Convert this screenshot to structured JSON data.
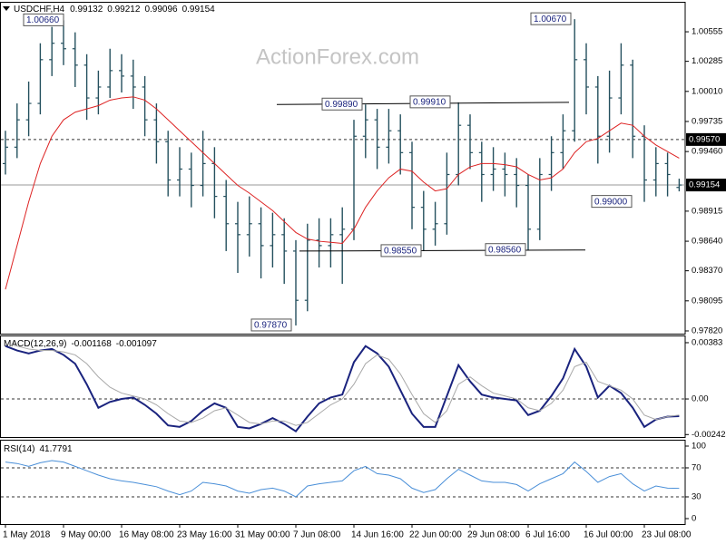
{
  "chart_data": [
    {
      "type": "ohlc",
      "title": "USDCHF,H4",
      "watermark": "ActionForex.com",
      "color": "#24505e",
      "categories": [
        "1 May 2018",
        null,
        null,
        null,
        null,
        "9 May 00:00",
        null,
        null,
        null,
        null,
        "16 May 08:00",
        null,
        null,
        null,
        null,
        "23 May 16:00",
        null,
        null,
        null,
        null,
        "31 May 00:00",
        null,
        null,
        null,
        null,
        "7 Jun 08:00",
        null,
        null,
        null,
        null,
        "14 Jun 16:00",
        null,
        null,
        null,
        null,
        "22 Jun 00:00",
        null,
        null,
        null,
        null,
        "29 Jun 08:00",
        null,
        null,
        null,
        null,
        "6 Jul 16:00",
        null,
        null,
        null,
        null,
        "16 Jul 00:00",
        null,
        null,
        null,
        null,
        "23 Jul 08:00",
        null,
        null,
        null
      ],
      "open": [
        0.9935,
        0.995,
        0.9975,
        0.999,
        1.003,
        1.0045,
        1.004,
        1.0025,
        0.9995,
        1.0005,
        1.002,
        1.0015,
        1.0005,
        0.9975,
        0.9955,
        0.992,
        0.993,
        0.9915,
        0.9935,
        0.9905,
        0.988,
        0.987,
        0.988,
        0.986,
        0.987,
        0.9855,
        0.981,
        0.9865,
        0.986,
        0.987,
        0.9875,
        0.996,
        0.9975,
        0.995,
        0.9965,
        0.9945,
        0.9895,
        0.9875,
        0.988,
        0.9925,
        0.997,
        0.9945,
        0.9925,
        0.993,
        0.9925,
        0.9915,
        0.9875,
        0.9925,
        0.9945,
        0.9965,
        1.003,
        1.0005,
        0.996,
        0.9995,
        1.0025,
        0.996,
        0.992,
        0.9935,
        0.99132
      ],
      "high": [
        0.9965,
        0.999,
        1.001,
        1.0045,
        1.006,
        1.0066,
        1.0055,
        1.0035,
        1.002,
        1.004,
        1.0035,
        1.003,
        1.0015,
        0.999,
        0.9965,
        0.995,
        0.9945,
        0.9965,
        0.995,
        0.992,
        0.99,
        0.9905,
        0.9895,
        0.989,
        0.9885,
        0.9865,
        0.988,
        0.9885,
        0.9885,
        0.9895,
        0.9975,
        0.9989,
        0.9985,
        0.9985,
        0.998,
        0.9955,
        0.991,
        0.99,
        0.9945,
        0.9991,
        0.998,
        0.9955,
        0.995,
        0.9945,
        0.994,
        0.9925,
        0.994,
        0.996,
        0.998,
        1.0067,
        1.0045,
        1.0015,
        1.002,
        1.0045,
        1.003,
        0.997,
        0.995,
        0.9945,
        0.99212
      ],
      "low": [
        0.9925,
        0.994,
        0.996,
        0.998,
        1.0015,
        1.0025,
        1.0005,
        0.9975,
        0.998,
        0.9995,
        1.0,
        0.9985,
        0.996,
        0.9935,
        0.9905,
        0.9905,
        0.9895,
        0.9905,
        0.9885,
        0.9855,
        0.9835,
        0.985,
        0.983,
        0.984,
        0.9825,
        0.9787,
        0.98,
        0.984,
        0.984,
        0.9825,
        0.9865,
        0.994,
        0.993,
        0.9935,
        0.9925,
        0.9875,
        0.9855,
        0.986,
        0.987,
        0.9915,
        0.993,
        0.99,
        0.991,
        0.9905,
        0.9895,
        0.9856,
        0.9865,
        0.991,
        0.993,
        0.9955,
        0.998,
        0.9935,
        0.9945,
        0.998,
        0.994,
        0.99,
        0.9905,
        0.9905,
        0.99096
      ],
      "close": [
        0.995,
        0.9975,
        0.999,
        1.003,
        1.0045,
        1.004,
        1.0025,
        0.9995,
        1.0005,
        1.002,
        1.0015,
        1.0005,
        0.9975,
        0.9955,
        0.992,
        0.993,
        0.9915,
        0.9935,
        0.9905,
        0.988,
        0.987,
        0.988,
        0.986,
        0.987,
        0.9855,
        0.981,
        0.9865,
        0.986,
        0.987,
        0.9875,
        0.996,
        0.9975,
        0.995,
        0.9965,
        0.9945,
        0.9895,
        0.9875,
        0.988,
        0.9925,
        0.997,
        0.9945,
        0.9925,
        0.993,
        0.9925,
        0.9915,
        0.9875,
        0.9925,
        0.9945,
        0.9965,
        1.003,
        1.0005,
        0.996,
        0.9995,
        1.0025,
        0.996,
        0.992,
        0.9935,
        0.9925,
        0.99154
      ],
      "ma": {
        "color": "#dd2222",
        "values": [
          0.982,
          0.986,
          0.99,
          0.9935,
          0.996,
          0.9975,
          0.9982,
          0.9985,
          0.9988,
          0.9993,
          0.9995,
          0.9996,
          0.9993,
          0.9985,
          0.9975,
          0.9965,
          0.9955,
          0.9945,
          0.9935,
          0.9925,
          0.9915,
          0.9908,
          0.99,
          0.9892,
          0.9882,
          0.9872,
          0.9866,
          0.9864,
          0.9863,
          0.9862,
          0.9875,
          0.9895,
          0.991,
          0.9922,
          0.993,
          0.9928,
          0.9918,
          0.991,
          0.9912,
          0.9925,
          0.9932,
          0.9935,
          0.9935,
          0.9934,
          0.9932,
          0.9925,
          0.992,
          0.9922,
          0.993,
          0.9945,
          0.9955,
          0.9958,
          0.9965,
          0.9972,
          0.997,
          0.996,
          0.9952,
          0.9946,
          0.994
        ]
      },
      "ylim": [
        0.97795,
        1.00829
      ],
      "yticks": [
        1.00555,
        1.00285,
        {
          "value": 1.0001,
          "label": "1.00010"
        },
        0.99735,
        {
          "value": 0.9946,
          "label": "0.99460"
        },
        0.98915,
        {
          "value": 0.9864,
          "label": "0.98640"
        },
        {
          "value": 0.9837,
          "label": "0.98370"
        },
        0.98095,
        {
          "value": 0.9782,
          "label": "0.97820"
        }
      ],
      "levels": [
        {
          "value": 0.9957,
          "label": "0.99570"
        }
      ],
      "annotations": [
        {
          "value": 1.0066,
          "label": "1.00660"
        },
        {
          "value": 0.9989,
          "label": "0.99890"
        },
        {
          "value": 0.9991,
          "label": "0.99910"
        },
        {
          "value": 0.9855,
          "label": "0.98550"
        },
        {
          "value": 0.9856,
          "label": "0.98560"
        },
        {
          "value": 1.0067,
          "label": "1.00670"
        },
        {
          "value": 0.99,
          "label": "0.99000"
        },
        {
          "value": 0.9787,
          "label": "0.97870"
        }
      ]
    },
    {
      "type": "line",
      "title": "MACD(12,26,9)",
      "series": [
        {
          "color": "#1a237e",
          "values": [
            0.0036,
            0.0033,
            0.0031,
            0.0033,
            0.0034,
            0.003,
            0.0024,
            0.001,
            -0.0006,
            -0.0002,
            0.0,
            0.0001,
            -0.0004,
            -0.001,
            -0.0018,
            -0.0019,
            -0.0015,
            -0.0008,
            -0.0003,
            -0.0006,
            -0.0019,
            -0.002,
            -0.0017,
            -0.0013,
            -0.0017,
            -0.0022,
            -0.0012,
            -0.0003,
            0.0001,
            0.0003,
            0.0025,
            0.0036,
            0.0031,
            0.0022,
            0.0006,
            -0.001,
            -0.0019,
            -0.0019,
            0.0002,
            0.0023,
            0.0012,
            0.0003,
            0.0001,
            0.0,
            -0.0001,
            -0.0011,
            -0.0008,
            0.0002,
            0.0014,
            0.0034,
            0.0022,
            0.0001,
            0.0009,
            0.0004,
            -0.0006,
            -0.0019,
            -0.0014,
            -0.0012,
            -0.001168
          ]
        },
        {
          "color": "#a8a8a8",
          "values": [
            0.0038,
            0.0036,
            0.0034,
            0.0033,
            0.0033,
            0.0032,
            0.003,
            0.0024,
            0.0015,
            0.0008,
            0.0004,
            0.0002,
            0.0,
            -0.0004,
            -0.001,
            -0.0015,
            -0.0016,
            -0.0013,
            -0.0008,
            -0.0006,
            -0.0011,
            -0.0016,
            -0.0017,
            -0.0015,
            -0.0015,
            -0.0018,
            -0.0016,
            -0.001,
            -0.0004,
            0.0,
            0.001,
            0.0024,
            0.003,
            0.0027,
            0.0017,
            0.0003,
            -0.001,
            -0.0016,
            -0.0008,
            0.001,
            0.0015,
            0.0009,
            0.0004,
            0.0002,
            0.0,
            -0.0006,
            -0.0008,
            -0.0003,
            0.0006,
            0.0022,
            0.0025,
            0.0012,
            0.0009,
            0.0006,
            0.0,
            -0.0011,
            -0.0014,
            -0.0012,
            -0.001097
          ]
        }
      ],
      "ylim": [
        -0.00259,
        0.00426
      ],
      "yticks": [
        0.00383,
        {
          "value": 0,
          "label": "0.00"
        },
        -0.002423
      ],
      "levels": [
        0
      ]
    },
    {
      "type": "line",
      "title": "RSI(14)",
      "series": [
        {
          "color": "#4a8fd8",
          "values": [
            78,
            76,
            72,
            77,
            80,
            78,
            72,
            66,
            60,
            55,
            52,
            50,
            47,
            44,
            38,
            33,
            38,
            50,
            48,
            45,
            38,
            35,
            40,
            42,
            38,
            30,
            45,
            48,
            50,
            52,
            66,
            72,
            62,
            60,
            55,
            42,
            36,
            40,
            55,
            68,
            60,
            52,
            50,
            50,
            47,
            38,
            48,
            55,
            62,
            78,
            65,
            50,
            58,
            62,
            48,
            38,
            45,
            42,
            41.7791
          ]
        }
      ],
      "ylim": [
        -7.5,
        107.5
      ],
      "yticks": [
        100,
        70,
        30,
        0
      ],
      "levels": [
        70,
        30
      ]
    }
  ]
}
